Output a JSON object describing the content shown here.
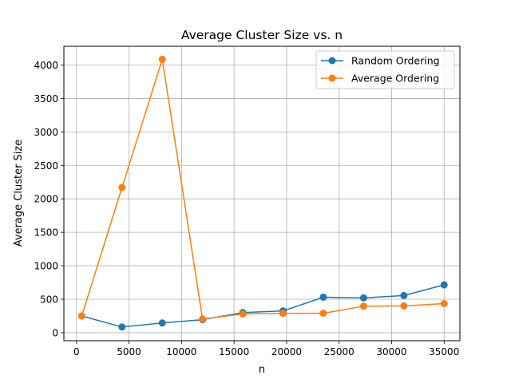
{
  "chart_data": {
    "type": "line",
    "title": "Average Cluster Size vs. n",
    "xlabel": "n",
    "ylabel": "Average Cluster Size",
    "xlim": [
      -1200,
      36500
    ],
    "ylim": [
      -120,
      4280
    ],
    "xticks": [
      0,
      5000,
      10000,
      15000,
      20000,
      25000,
      30000,
      35000
    ],
    "xtick_labels": [
      "0",
      "5000",
      "10000",
      "15000",
      "20000",
      "25000",
      "30000",
      "35000"
    ],
    "yticks": [
      0,
      500,
      1000,
      1500,
      2000,
      2500,
      3000,
      3500,
      4000
    ],
    "ytick_labels": [
      "0",
      "500",
      "1000",
      "1500",
      "2000",
      "2500",
      "3000",
      "3500",
      "4000"
    ],
    "grid": true,
    "legend_position": "top-right",
    "x": [
      500,
      4333,
      8167,
      12000,
      15833,
      19667,
      23500,
      27333,
      31167,
      35000
    ],
    "series": [
      {
        "name": "Random Ordering",
        "color": "#1f77b4",
        "values": [
          250,
          85,
          145,
          195,
          300,
          325,
          530,
          520,
          555,
          715
        ]
      },
      {
        "name": "Average Ordering",
        "color": "#ff7f0e",
        "values": [
          250,
          2170,
          4085,
          205,
          280,
          290,
          290,
          395,
          400,
          435
        ]
      }
    ]
  }
}
